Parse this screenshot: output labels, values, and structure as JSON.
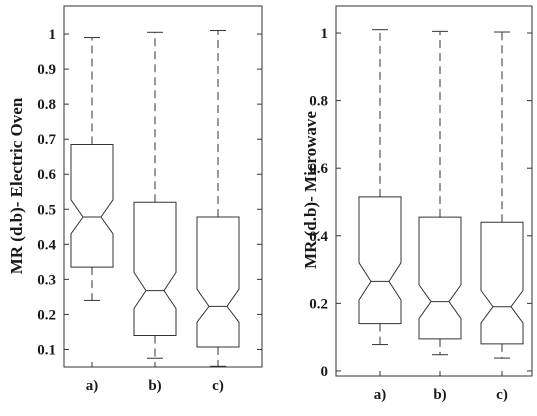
{
  "chart_data": [
    {
      "type": "box",
      "ylabel": "MR (d.b)- Electric Oven",
      "xlabel": "",
      "title": "",
      "categories": [
        "a)",
        "b)",
        "c)"
      ],
      "ylim": [
        0.05,
        1.08
      ],
      "yticks": [
        0.1,
        0.2,
        0.3,
        0.4,
        0.5,
        0.6,
        0.7,
        0.8,
        0.9,
        1
      ],
      "ytick_labels": [
        "0.1",
        "0.2",
        "0.3",
        "0.4",
        "0.5",
        "0.6",
        "0.7",
        "0.8",
        "0.9",
        "1"
      ],
      "boxes": [
        {
          "category": "a)",
          "min": 0.24,
          "q1": 0.335,
          "median": 0.478,
          "q3": 0.685,
          "max": 0.99,
          "notch_low": 0.43,
          "notch_high": 0.527
        },
        {
          "category": "b)",
          "min": 0.075,
          "q1": 0.14,
          "median": 0.268,
          "q3": 0.52,
          "max": 1.005,
          "notch_low": 0.217,
          "notch_high": 0.32
        },
        {
          "category": "c)",
          "min": 0.052,
          "q1": 0.107,
          "median": 0.223,
          "q3": 0.478,
          "max": 1.01,
          "notch_low": 0.178,
          "notch_high": 0.272
        }
      ],
      "grid": false
    },
    {
      "type": "box",
      "ylabel": "MR (d.b)- Microwave",
      "xlabel": "",
      "title": "",
      "categories": [
        "a)",
        "b)",
        "c)"
      ],
      "ylim": [
        -0.015,
        1.08
      ],
      "yticks": [
        0,
        0.2,
        0.4,
        0.6,
        0.8,
        1
      ],
      "ytick_labels": [
        "0",
        "0.2",
        "0.4",
        "0.6",
        "0.8",
        "1"
      ],
      "boxes": [
        {
          "category": "a)",
          "min": 0.078,
          "q1": 0.14,
          "median": 0.265,
          "q3": 0.515,
          "max": 1.01,
          "notch_low": 0.21,
          "notch_high": 0.32
        },
        {
          "category": "b)",
          "min": 0.048,
          "q1": 0.095,
          "median": 0.205,
          "q3": 0.455,
          "max": 1.005,
          "notch_low": 0.155,
          "notch_high": 0.255
        },
        {
          "category": "c)",
          "min": 0.038,
          "q1": 0.08,
          "median": 0.19,
          "q3": 0.44,
          "max": 1.003,
          "notch_low": 0.142,
          "notch_high": 0.238
        }
      ],
      "grid": false
    }
  ]
}
